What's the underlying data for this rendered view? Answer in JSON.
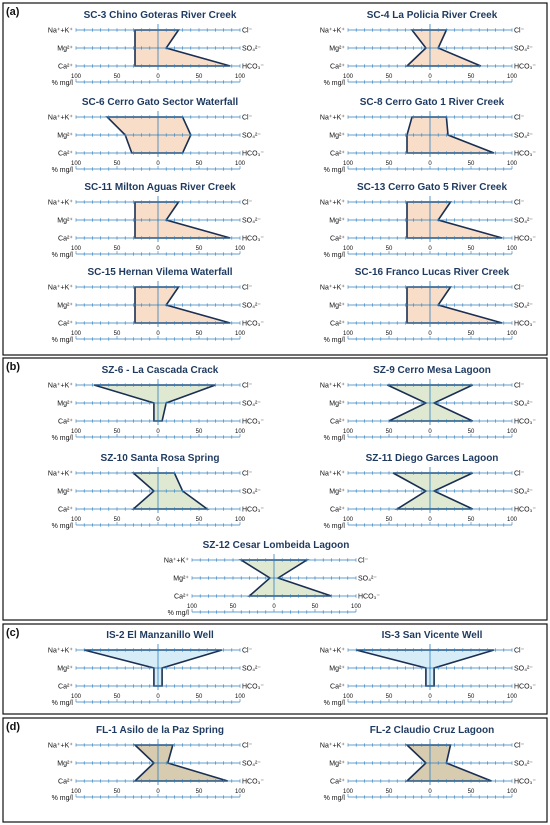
{
  "axis": {
    "unit_label": "% mg/l",
    "ticks": [
      "100",
      "50",
      "0",
      "50",
      "100"
    ],
    "left_ions": [
      "Na⁺+K⁺",
      "Mg²⁺",
      "Ca²⁺"
    ],
    "right_ions": [
      "Cl⁻",
      "SO₄²⁻",
      "HCO₃⁻"
    ]
  },
  "colors": {
    "a": "#f8ddc8",
    "b": "#dfe9d2",
    "c": "#d6edf7",
    "d": "#d7cbb0",
    "outline": "#1a2f52",
    "axis": "#2f7fbf"
  },
  "panels": [
    {
      "label": "(a)",
      "fill_key": "a",
      "diagrams": [
        {
          "title": "SC-3 Chino Goteras River Creek",
          "values": {
            "naK": 28,
            "mg": 28,
            "ca": 28,
            "cl": 25,
            "so4": 10,
            "hco3": 88
          }
        },
        {
          "title": "SC-4 La Policia River Creek",
          "values": {
            "naK": 22,
            "mg": 5,
            "ca": 28,
            "cl": 20,
            "so4": 10,
            "hco3": 62
          }
        },
        {
          "title": "SC-6 Cerro Gato Sector Waterfall",
          "values": {
            "naK": 62,
            "mg": 40,
            "ca": 32,
            "cl": 30,
            "so4": 40,
            "hco3": 30
          }
        },
        {
          "title": "SC-8 Cerro Gato 1 River Creek",
          "values": {
            "naK": 22,
            "mg": 28,
            "ca": 28,
            "cl": 20,
            "so4": 22,
            "hco3": 78
          }
        },
        {
          "title": "SC-11 Milton Aguas River Creek",
          "values": {
            "naK": 28,
            "mg": 28,
            "ca": 28,
            "cl": 25,
            "so4": 10,
            "hco3": 88
          }
        },
        {
          "title": "SC-13 Cerro Gato 5 River Creek",
          "values": {
            "naK": 28,
            "mg": 28,
            "ca": 28,
            "cl": 25,
            "so4": 10,
            "hco3": 88
          }
        },
        {
          "title": "SC-15 Hernan Vilema Waterfall",
          "values": {
            "naK": 28,
            "mg": 28,
            "ca": 28,
            "cl": 25,
            "so4": 10,
            "hco3": 88
          }
        },
        {
          "title": "SC-16 Franco Lucas River Creek",
          "values": {
            "naK": 28,
            "mg": 28,
            "ca": 28,
            "cl": 25,
            "so4": 10,
            "hco3": 88
          }
        }
      ]
    },
    {
      "label": "(b)",
      "fill_key": "b",
      "diagrams": [
        {
          "title": "SZ-6 - La Cascada Crack",
          "values": {
            "naK": 78,
            "mg": 5,
            "ca": 5,
            "cl": 70,
            "so4": 10,
            "hco3": 5
          }
        },
        {
          "title": "SZ-9 Cerro Mesa Lagoon",
          "values": {
            "naK": 52,
            "mg": 5,
            "ca": 50,
            "cl": 52,
            "so4": 5,
            "hco3": 52
          }
        },
        {
          "title": "SZ-10 Santa Rosa Spring",
          "values": {
            "naK": 30,
            "mg": 5,
            "ca": 30,
            "cl": 20,
            "so4": 30,
            "hco3": 60
          }
        },
        {
          "title": "SZ-11 Diego Garces Lagoon",
          "values": {
            "naK": 45,
            "mg": 5,
            "ca": 40,
            "cl": 52,
            "so4": 5,
            "hco3": 52
          }
        },
        {
          "title": "SZ-12 Cesar Lombeida Lagoon",
          "values": {
            "naK": 40,
            "mg": 5,
            "ca": 30,
            "cl": 40,
            "so4": 5,
            "hco3": 70
          }
        }
      ]
    },
    {
      "label": "(c)",
      "fill_key": "c",
      "diagrams": [
        {
          "title": "IS-2 El Manzanillo Well",
          "values": {
            "naK": 90,
            "mg": 5,
            "ca": 5,
            "cl": 78,
            "so4": 5,
            "hco3": 5
          }
        },
        {
          "title": "IS-3 San Vicente Well",
          "values": {
            "naK": 90,
            "mg": 5,
            "ca": 5,
            "cl": 78,
            "so4": 5,
            "hco3": 5
          }
        }
      ]
    },
    {
      "label": "(d)",
      "fill_key": "d",
      "diagrams": [
        {
          "title": "FL-1 Asilo de la Paz Spring",
          "values": {
            "naK": 28,
            "mg": 5,
            "ca": 28,
            "cl": 18,
            "so4": 12,
            "hco3": 85
          }
        },
        {
          "title": "FL-2 Claudio Cruz Lagoon",
          "values": {
            "naK": 28,
            "mg": 5,
            "ca": 28,
            "cl": 25,
            "so4": 20,
            "hco3": 75
          }
        }
      ]
    }
  ]
}
